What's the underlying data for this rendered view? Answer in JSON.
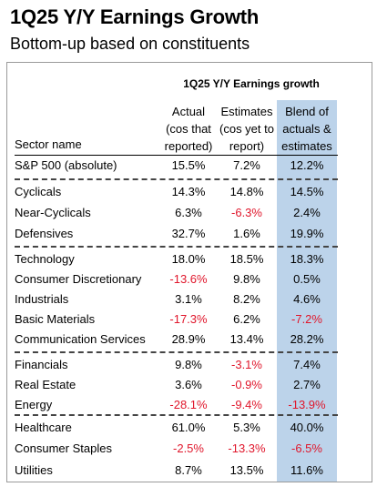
{
  "header": {
    "title": "1Q25 Y/Y Earnings Growth",
    "subtitle": "Bottom-up based on constituents"
  },
  "table": {
    "group_header": "1Q25 Y/Y Earnings growth",
    "columns": {
      "sector": "Sector name",
      "actual": [
        "Actual",
        "(cos that",
        "reported)"
      ],
      "estimates": [
        "Estimates",
        "(cos yet to",
        "report)"
      ],
      "blend": [
        "Blend of",
        "actuals &",
        "estimates"
      ]
    },
    "groups": [
      {
        "rows": [
          {
            "sector": "S&P 500 (absolute)",
            "actual": "15.5%",
            "estimates": "7.2%",
            "blend": "12.2%"
          }
        ]
      },
      {
        "rows": [
          {
            "sector": "Cyclicals",
            "actual": "14.3%",
            "estimates": "14.8%",
            "blend": "14.5%"
          },
          {
            "sector": "Near-Cyclicals",
            "actual": "6.3%",
            "estimates": "-6.3%",
            "blend": "2.4%"
          },
          {
            "sector": "Defensives",
            "actual": "32.7%",
            "estimates": "1.6%",
            "blend": "19.9%"
          }
        ]
      },
      {
        "rows": [
          {
            "sector": "Technology",
            "actual": "18.0%",
            "estimates": "18.5%",
            "blend": "18.3%"
          },
          {
            "sector": "Consumer Discretionary",
            "actual": "-13.6%",
            "estimates": "9.8%",
            "blend": "0.5%"
          },
          {
            "sector": "Industrials",
            "actual": "3.1%",
            "estimates": "8.2%",
            "blend": "4.6%"
          },
          {
            "sector": "Basic Materials",
            "actual": "-17.3%",
            "estimates": "6.2%",
            "blend": "-7.2%"
          },
          {
            "sector": "Communication Services",
            "actual": "28.9%",
            "estimates": "13.4%",
            "blend": "28.2%"
          }
        ]
      },
      {
        "rows": [
          {
            "sector": "Financials",
            "actual": "9.8%",
            "estimates": "-3.1%",
            "blend": "7.4%"
          },
          {
            "sector": "Real Estate",
            "actual": "3.6%",
            "estimates": "-0.9%",
            "blend": "2.7%"
          },
          {
            "sector": "Energy",
            "actual": "-28.1%",
            "estimates": "-9.4%",
            "blend": "-13.9%"
          }
        ]
      },
      {
        "rows": [
          {
            "sector": "Healthcare",
            "actual": "61.0%",
            "estimates": "5.3%",
            "blend": "40.0%"
          },
          {
            "sector": "Consumer Staples",
            "actual": "-2.5%",
            "estimates": "-13.3%",
            "blend": "-6.5%"
          },
          {
            "sector": "Utilities",
            "actual": "8.7%",
            "estimates": "13.5%",
            "blend": "11.6%"
          }
        ]
      }
    ]
  },
  "colors": {
    "negative": "#e0162b",
    "blend_highlight": "#bcd3ea"
  }
}
